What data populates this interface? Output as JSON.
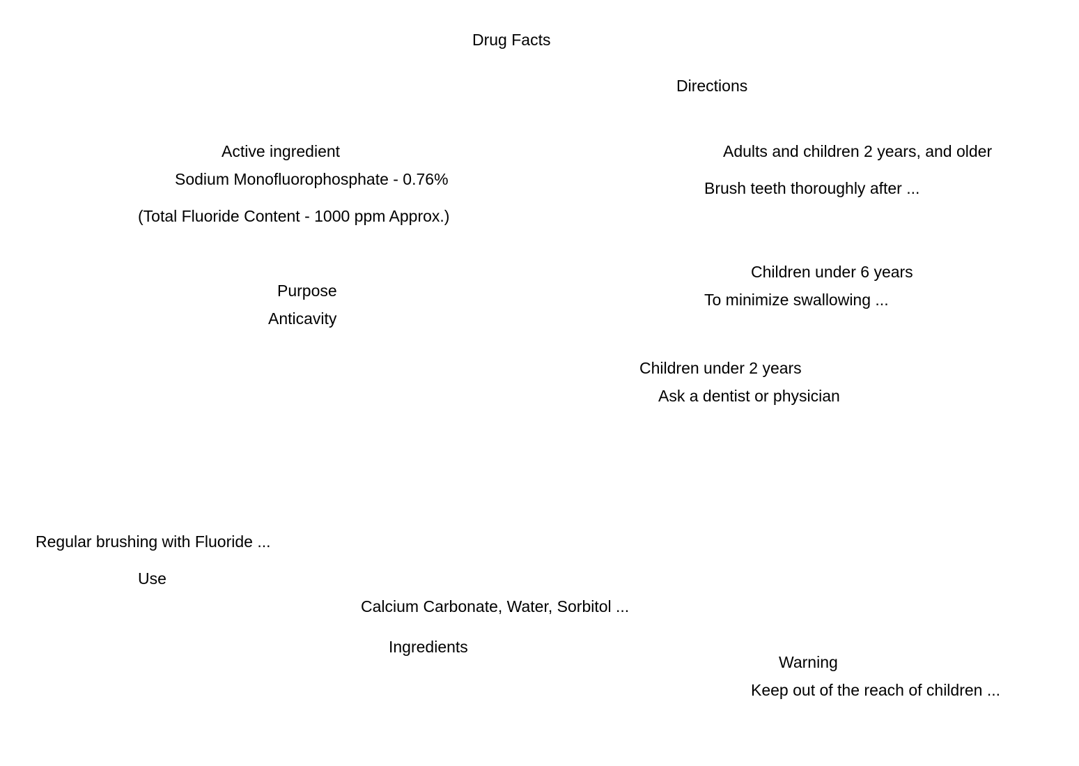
{
  "title": "Drug Facts",
  "directions": {
    "heading": "Directions",
    "adults": {
      "heading": "Adults and children 2 years, and older",
      "text": "Brush teeth thoroughly after ..."
    },
    "children_under_6": {
      "heading": "Children under 6 years",
      "text": "To minimize swallowing ..."
    },
    "children_under_2": {
      "heading": "Children under 2 years",
      "text": "Ask a dentist or physician"
    }
  },
  "active_ingredient": {
    "heading": "Active ingredient",
    "name": "Sodium Monofluorophosphate - 0.76%",
    "note": "(Total Fluoride Content - 1000 ppm Approx.)"
  },
  "purpose": {
    "heading": "Purpose",
    "value": "Anticavity"
  },
  "use": {
    "text": "Regular brushing with Fluoride ...",
    "heading": "Use"
  },
  "ingredients": {
    "text": "Calcium Carbonate, Water, Sorbitol ...",
    "heading": "Ingredients"
  },
  "warning": {
    "heading": "Warning",
    "text": "Keep out of the reach of children ..."
  }
}
